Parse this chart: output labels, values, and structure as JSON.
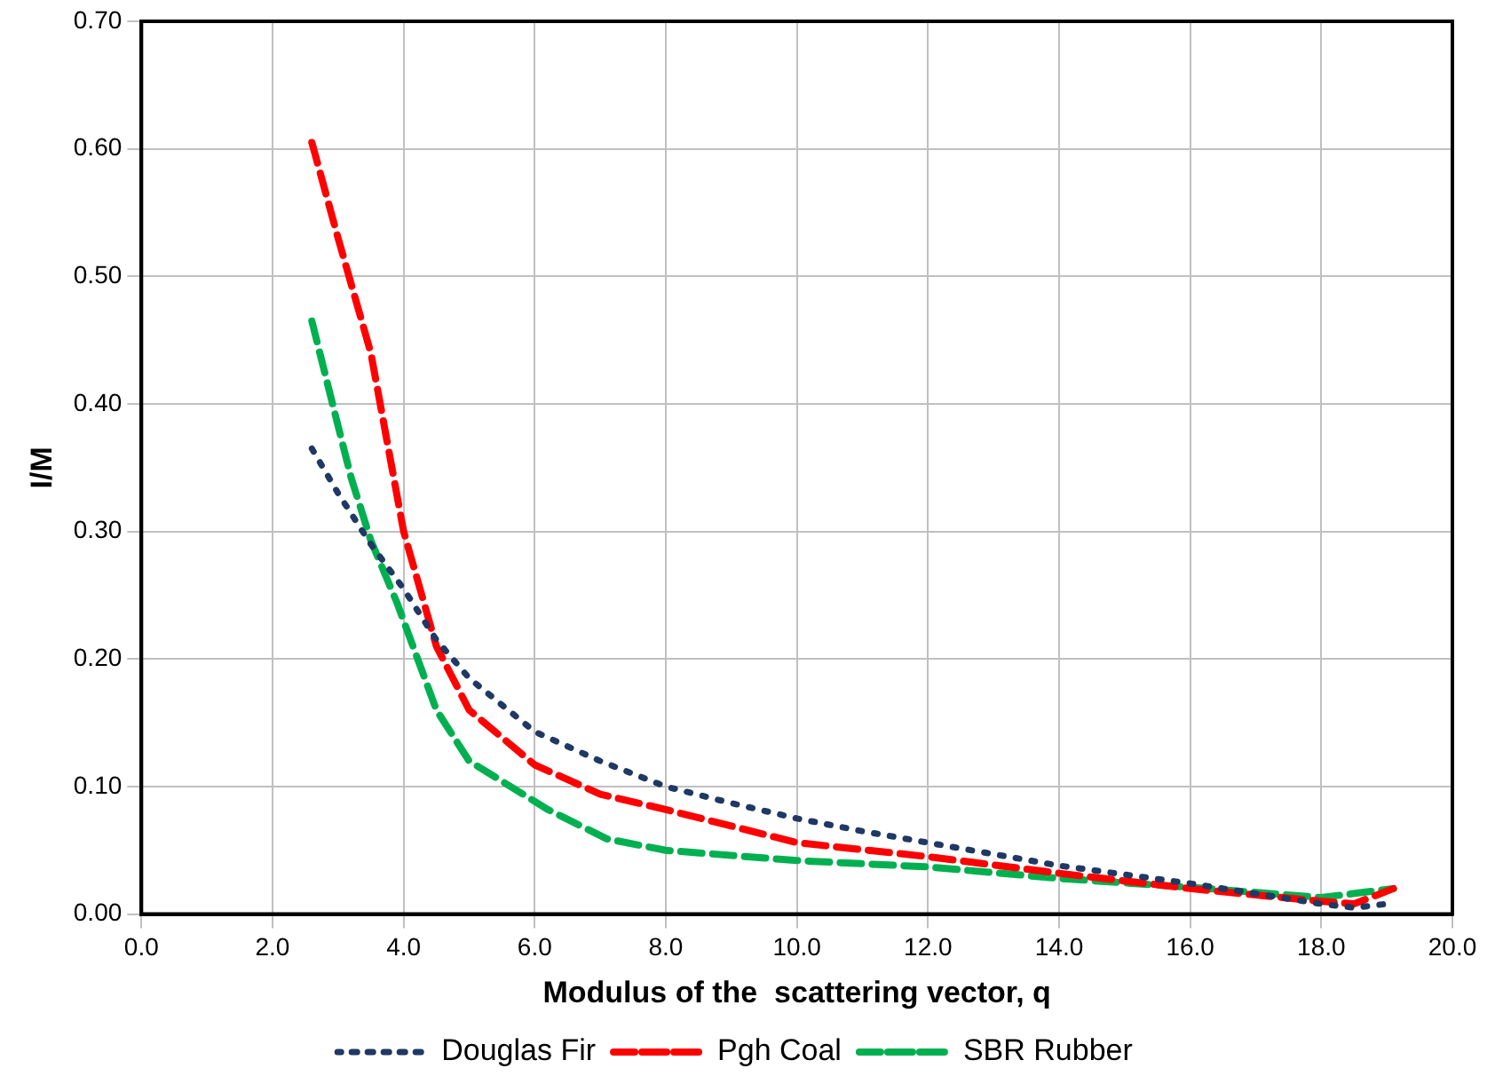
{
  "chart_data": {
    "type": "line",
    "xlabel": "Modulus of the  scattering vector, q",
    "ylabel": "I/M",
    "xlim": [
      0,
      20
    ],
    "ylim": [
      0,
      0.7
    ],
    "xticks": [
      {
        "value": 0,
        "label": "0.0"
      },
      {
        "value": 2,
        "label": "2.0"
      },
      {
        "value": 4,
        "label": "4.0"
      },
      {
        "value": 6,
        "label": "6.0"
      },
      {
        "value": 8,
        "label": "8.0"
      },
      {
        "value": 10,
        "label": "10.0"
      },
      {
        "value": 12,
        "label": "12.0"
      },
      {
        "value": 14,
        "label": "14.0"
      },
      {
        "value": 16,
        "label": "16.0"
      },
      {
        "value": 18,
        "label": "18.0"
      },
      {
        "value": 20,
        "label": "20.0"
      }
    ],
    "yticks": [
      {
        "value": 0,
        "label": "0.00"
      },
      {
        "value": 0.1,
        "label": "0.10"
      },
      {
        "value": 0.2,
        "label": "0.20"
      },
      {
        "value": 0.3,
        "label": "0.30"
      },
      {
        "value": 0.4,
        "label": "0.40"
      },
      {
        "value": 0.5,
        "label": "0.50"
      },
      {
        "value": 0.6,
        "label": "0.60"
      },
      {
        "value": 0.7,
        "label": "0.70"
      }
    ],
    "grid": true,
    "legend": "bottom",
    "marker": "none",
    "series": [
      {
        "name": "Douglas Fir",
        "color": "#1f3864",
        "line_style": "dotted",
        "x": [
          2.6,
          3.0,
          3.5,
          4.0,
          4.5,
          5.0,
          6.0,
          7.0,
          8.0,
          9.0,
          10.0,
          11.0,
          12.0,
          13.0,
          14.0,
          15.0,
          16.0,
          17.0,
          18.0,
          18.5,
          19.0
        ],
        "values": [
          0.365,
          0.33,
          0.29,
          0.255,
          0.215,
          0.185,
          0.143,
          0.12,
          0.1,
          0.087,
          0.075,
          0.065,
          0.056,
          0.047,
          0.038,
          0.031,
          0.024,
          0.016,
          0.008,
          0.005,
          0.008
        ]
      },
      {
        "name": "Pgh Coal",
        "color": "#ff0000",
        "line_style": "dashed",
        "x": [
          2.6,
          3.0,
          3.5,
          4.0,
          4.5,
          5.0,
          6.0,
          7.0,
          8.0,
          10.0,
          12.0,
          14.0,
          16.0,
          18.0,
          18.5,
          19.1
        ],
        "values": [
          0.605,
          0.53,
          0.44,
          0.3,
          0.21,
          0.16,
          0.117,
          0.094,
          0.082,
          0.056,
          0.045,
          0.032,
          0.02,
          0.01,
          0.008,
          0.02
        ]
      },
      {
        "name": "SBR Rubber",
        "color": "#00b050",
        "line_style": "dashed",
        "x": [
          2.6,
          2.95,
          3.2,
          3.5,
          3.9,
          4.5,
          5.0,
          6.2,
          7.1,
          8.0,
          10.0,
          12.0,
          14.0,
          16.0,
          18.0,
          19.1
        ],
        "values": [
          0.465,
          0.393,
          0.342,
          0.293,
          0.244,
          0.16,
          0.12,
          0.082,
          0.059,
          0.05,
          0.042,
          0.037,
          0.028,
          0.021,
          0.013,
          0.02
        ]
      }
    ]
  }
}
